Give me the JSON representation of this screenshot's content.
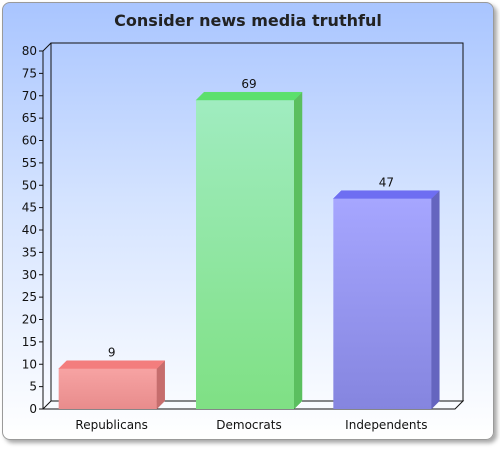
{
  "chart_data": {
    "type": "bar",
    "title": "Consider news media truthful",
    "categories": [
      "Republicans",
      "Democrats",
      "Independents"
    ],
    "values": [
      9,
      69,
      47
    ],
    "ylim": [
      0,
      80
    ],
    "yticks": [
      0,
      5,
      10,
      15,
      20,
      25,
      30,
      35,
      40,
      45,
      50,
      55,
      60,
      65,
      70,
      75,
      80
    ],
    "xlabel": "",
    "ylabel": "",
    "grid": false,
    "legend": "none",
    "bar_colors": [
      {
        "front_top": "#f7a3a3",
        "front_bottom": "#e88c8c",
        "side": "#c66d6d",
        "top": "#f37d7d"
      },
      {
        "front_top": "#a0ecc0",
        "front_bottom": "#7fe084",
        "side": "#5bbf5f",
        "top": "#5ce06d"
      },
      {
        "front_top": "#a6a6ff",
        "front_bottom": "#8585df",
        "side": "#6565bf",
        "top": "#6e6ef2"
      }
    ]
  }
}
